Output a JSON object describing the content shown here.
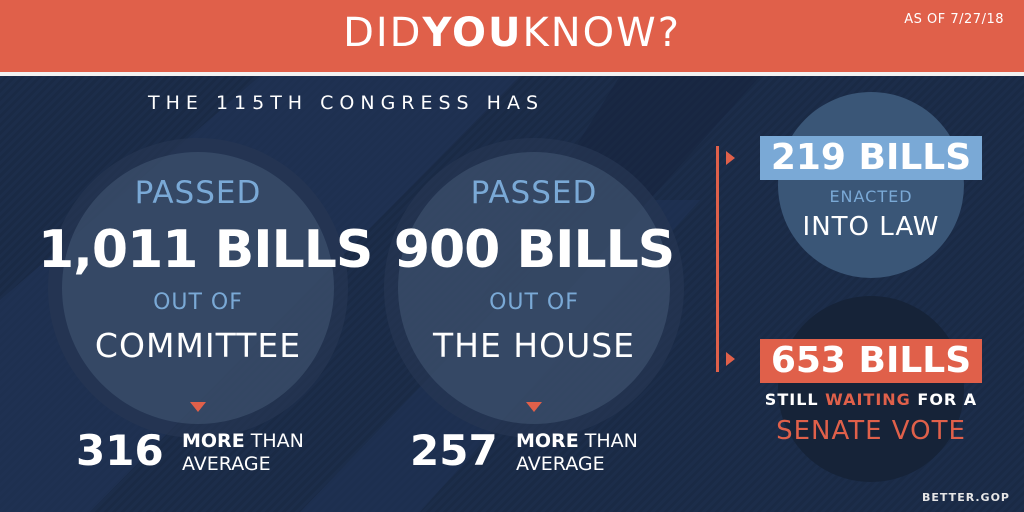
{
  "header": {
    "title_part1": "DID",
    "title_part2": "YOU",
    "title_part3": "KNOW?",
    "as_of": "AS OF 7/27/18"
  },
  "subhead": "THE 115TH CONGRESS HAS",
  "committee": {
    "label_top": "PASSED",
    "count": "1,011 BILLS",
    "label_mid": "OUT OF",
    "label_bottom": "COMMITTEE",
    "delta": "316",
    "delta_more": "MORE",
    "delta_than": " THAN",
    "delta_avg": "AVERAGE"
  },
  "house": {
    "label_top": "PASSED",
    "count": "900 BILLS",
    "label_mid": "OUT OF",
    "label_bottom": "THE HOUSE",
    "delta": "257",
    "delta_more": "MORE",
    "delta_than": " THAN",
    "delta_avg": "AVERAGE"
  },
  "enacted": {
    "count": "219 BILLS",
    "line1": "ENACTED",
    "line2": "INTO LAW"
  },
  "waiting": {
    "count": "653 BILLS",
    "line1_a": "STILL ",
    "line1_b": "WAITING",
    "line1_c": " FOR A",
    "line2": "SENATE VOTE"
  },
  "footer": "BETTER.GOP",
  "colors": {
    "accent_red": "#e0604a",
    "accent_blue": "#7aa9d6",
    "background": "#1c2d4a"
  }
}
